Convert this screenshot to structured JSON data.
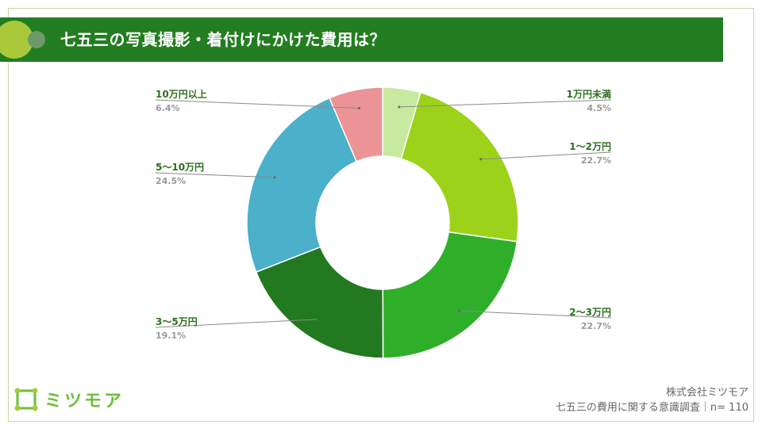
{
  "header": {
    "title": "七五三の写真撮影・着付けにかけた費用は？"
  },
  "footer": {
    "company": "株式会社ミツモア",
    "source": "七五三の費用に関する意識調査｜n= 110"
  },
  "logo": {
    "text": "ミツモア",
    "icon": "mitsumore-logo-icon"
  },
  "colors": {
    "header_bg": "#237d21",
    "under_1": "#c8eaa0",
    "1_2": "#9dd21b",
    "2_3": "#2fae2a",
    "3_5": "#22791f",
    "5_10": "#4bb0c9",
    "over_10": "#ec9396"
  },
  "chart_data": {
    "type": "pie",
    "donut": true,
    "title": "七五三の写真撮影・着付けにかけた費用は？",
    "categories": [
      "1万円未満",
      "1〜2万円",
      "2〜3万円",
      "3〜5万円",
      "5〜10万円",
      "10万円以上"
    ],
    "values": [
      4.5,
      22.7,
      22.7,
      19.1,
      24.5,
      6.4
    ],
    "value_labels": [
      "4.5%",
      "22.7%",
      "22.7%",
      "19.1%",
      "24.5%",
      "6.4%"
    ],
    "unit": "%",
    "colors": [
      "#c8eaa0",
      "#9dd21b",
      "#2fae2a",
      "#22791f",
      "#4bb0c9",
      "#ec9396"
    ],
    "legend": "callout labels"
  }
}
